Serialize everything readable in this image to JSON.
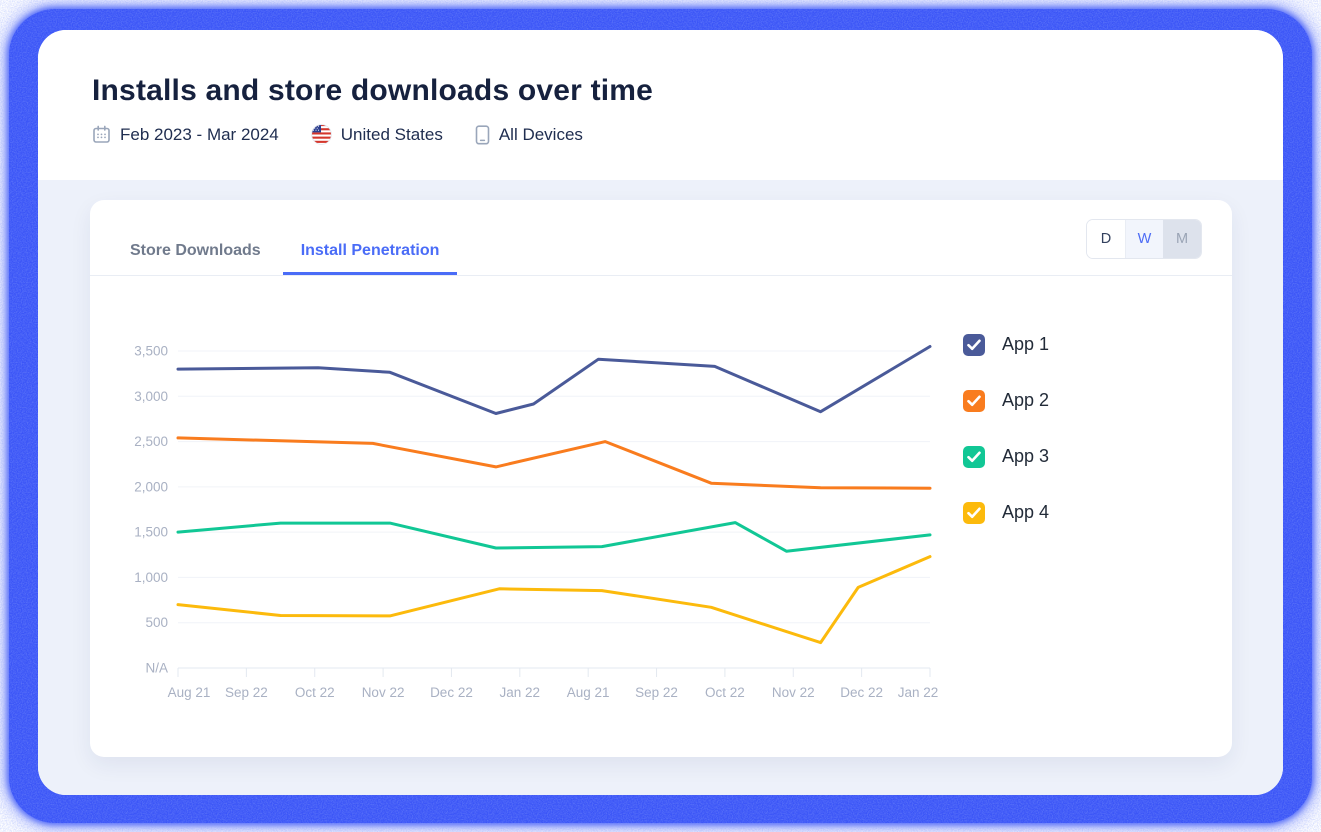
{
  "header": {
    "title": "Installs and store downloads over time",
    "date_range": "Feb 2023 - Mar 2024",
    "country": "United States",
    "devices": "All Devices",
    "icons": [
      "calendar-icon",
      "us-flag-icon",
      "mobile-device-icon"
    ]
  },
  "card": {
    "tabs": [
      {
        "label": "Store Downloads",
        "active": false
      },
      {
        "label": "Install Penetration",
        "active": true
      }
    ],
    "granularity": {
      "options": [
        "D",
        "W",
        "M"
      ],
      "selected": "W"
    }
  },
  "chart_data": {
    "type": "line",
    "title": "Install Penetration",
    "xlabel": "",
    "ylabel": "",
    "grid": true,
    "legend_position": "right",
    "ylim": [
      0,
      3500
    ],
    "y_ticks": [
      {
        "label": "N/A",
        "value": 0
      },
      {
        "label": "500",
        "value": 500
      },
      {
        "label": "1,000",
        "value": 1000
      },
      {
        "label": "1,500",
        "value": 1500
      },
      {
        "label": "2,000",
        "value": 2000
      },
      {
        "label": "2,500",
        "value": 2500
      },
      {
        "label": "3,000",
        "value": 3000
      },
      {
        "label": "3,500",
        "value": 3500
      }
    ],
    "x_labels": [
      "Aug 21",
      "Sep 22",
      "Oct 22",
      "Nov 22",
      "Dec 22",
      "Jan 22",
      "Aug 21",
      "Sep 22",
      "Oct 22",
      "Nov 22",
      "Dec 22",
      "Jan 22"
    ],
    "series": [
      {
        "name": "App 1",
        "color": "#4a5a99",
        "checked": true,
        "points": [
          [
            0,
            3300
          ],
          [
            2.05,
            3315
          ],
          [
            3.1,
            3265
          ],
          [
            4.65,
            2810
          ],
          [
            5.2,
            2915
          ],
          [
            6.15,
            3410
          ],
          [
            7.85,
            3330
          ],
          [
            9.4,
            2830
          ],
          [
            11,
            3550
          ]
        ]
      },
      {
        "name": "App 2",
        "color": "#f97c1e",
        "checked": true,
        "points": [
          [
            0,
            2540
          ],
          [
            2.85,
            2480
          ],
          [
            4.65,
            2220
          ],
          [
            6.25,
            2500
          ],
          [
            7.8,
            2040
          ],
          [
            9.4,
            1990
          ],
          [
            11,
            1985
          ]
        ]
      },
      {
        "name": "App 3",
        "color": "#11c795",
        "checked": true,
        "points": [
          [
            0,
            1500
          ],
          [
            1.5,
            1600
          ],
          [
            3.1,
            1600
          ],
          [
            4.65,
            1325
          ],
          [
            6.2,
            1340
          ],
          [
            8.15,
            1605
          ],
          [
            8.9,
            1290
          ],
          [
            11,
            1470
          ]
        ]
      },
      {
        "name": "App 4",
        "color": "#fcba0c",
        "checked": true,
        "points": [
          [
            0,
            700
          ],
          [
            1.5,
            580
          ],
          [
            3.1,
            575
          ],
          [
            4.7,
            875
          ],
          [
            6.2,
            855
          ],
          [
            7.8,
            670
          ],
          [
            9.4,
            280
          ],
          [
            9.95,
            890
          ],
          [
            11,
            1230
          ]
        ]
      }
    ]
  },
  "colors": {
    "frame_blue": "#3b55f7",
    "panel_bg": "#ffffff",
    "content_bg": "#edf1fa",
    "title_text": "#16213e",
    "tab_active": "#4a6cf7",
    "tab_inactive": "#707a8c",
    "axis_label": "#a9b1c3",
    "gridline": "#f0f3f8",
    "axis_line": "#e3e8f0"
  }
}
